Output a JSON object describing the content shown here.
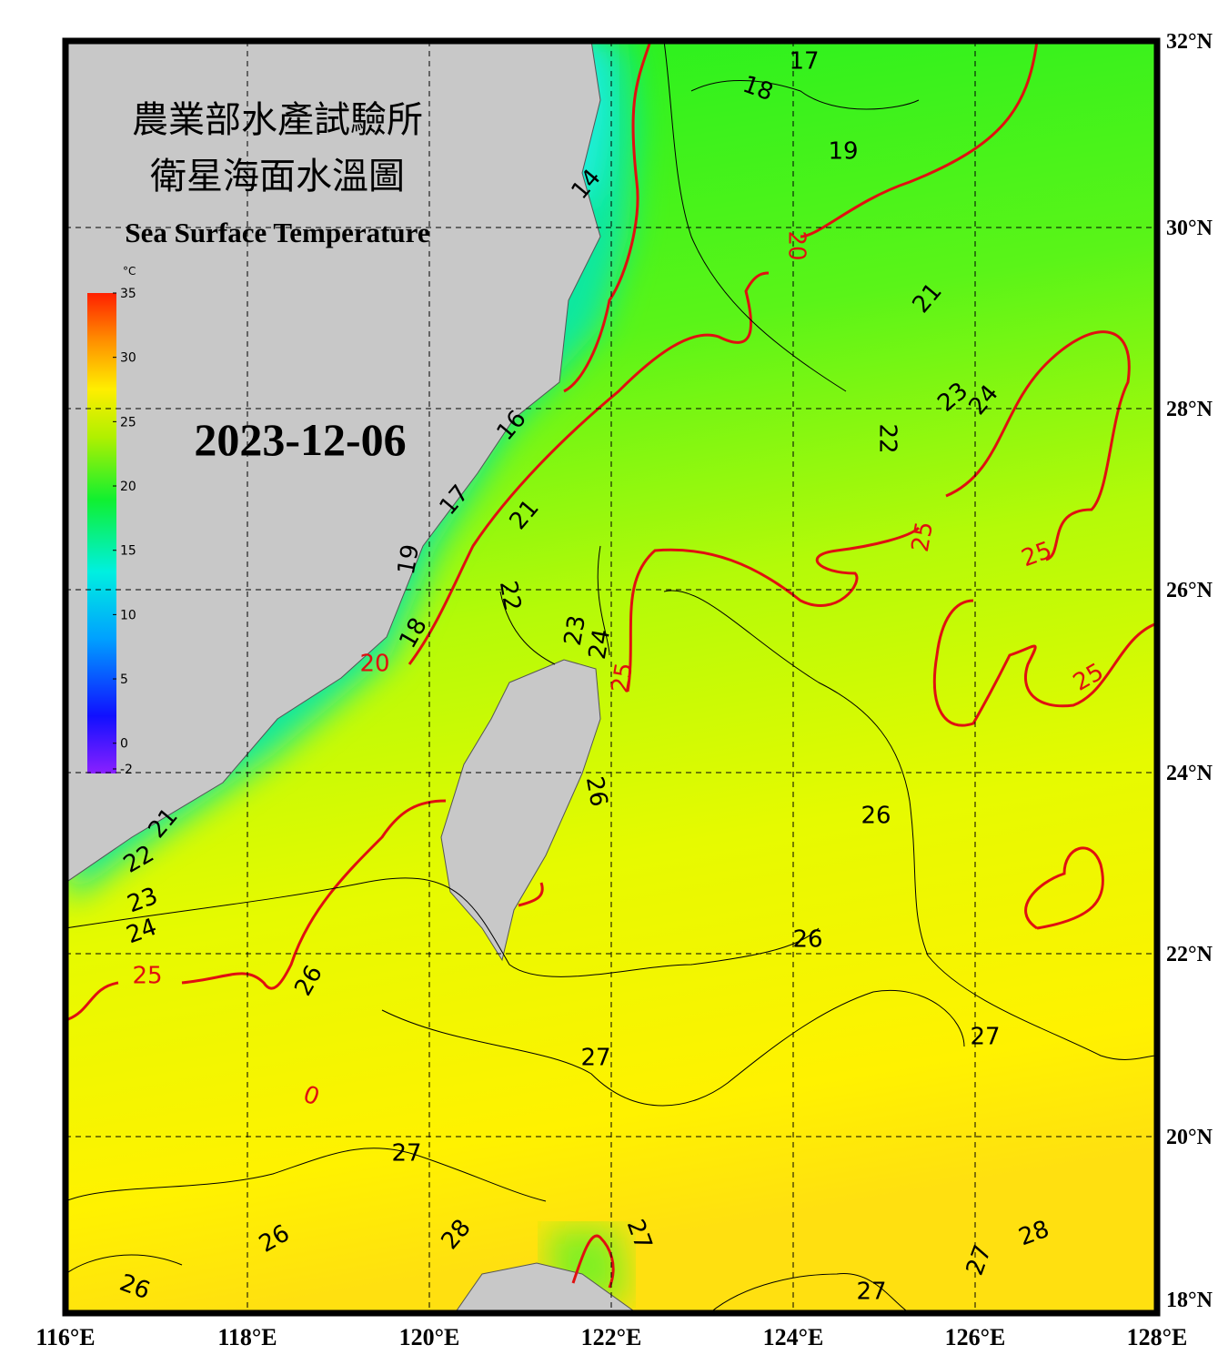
{
  "header": {
    "title_zh_1": "農業部水產試驗所",
    "title_zh_2": "衛星海面水溫圖",
    "title_en": "Sea Surface Temperature",
    "date": "2023-12-06"
  },
  "colorbar": {
    "unit": "°C",
    "ticks": [
      35,
      30,
      25,
      20,
      15,
      10,
      5,
      0,
      -2
    ]
  },
  "axes": {
    "longitude_labels": [
      "116°E",
      "118°E",
      "120°E",
      "122°E",
      "124°E",
      "126°E",
      "128°E"
    ],
    "latitude_labels": [
      "32°N",
      "30°N",
      "28°N",
      "26°N",
      "24°N",
      "22°N",
      "20°N",
      "18°N"
    ]
  },
  "contour_labels": [
    17,
    18,
    19,
    14,
    20,
    21,
    23,
    24,
    22,
    16,
    21,
    25,
    25,
    17,
    19,
    22,
    23,
    24,
    25,
    20,
    18,
    25,
    26,
    26,
    21,
    22,
    23,
    24,
    25,
    26,
    26,
    27,
    27,
    27,
    28,
    26,
    27,
    28,
    27,
    26,
    27,
    0
  ]
}
